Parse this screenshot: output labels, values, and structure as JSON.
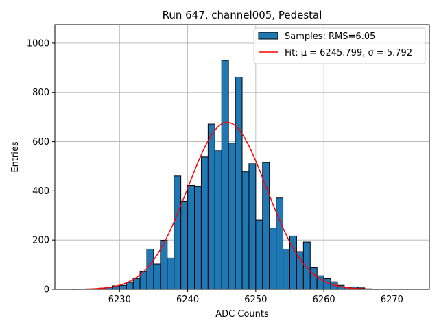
{
  "chart_data": {
    "type": "bar",
    "title": "Run 647, channel005, Pedestal",
    "xlabel": "ADC Counts",
    "ylabel": "Entries",
    "xlim": [
      6220.5,
      6275.5
    ],
    "ylim": [
      0,
      1075
    ],
    "xticks": [
      6230,
      6240,
      6250,
      6260,
      6270
    ],
    "yticks": [
      0,
      200,
      400,
      600,
      800,
      1000
    ],
    "grid": true,
    "legend_position": "top-right",
    "bin_edges_start": 6226,
    "bin_width": 1,
    "bins": [
      {
        "x": 6226,
        "count": 2
      },
      {
        "x": 6227,
        "count": 5
      },
      {
        "x": 6228,
        "count": 8
      },
      {
        "x": 6229,
        "count": 14
      },
      {
        "x": 6230,
        "count": 16
      },
      {
        "x": 6231,
        "count": 28
      },
      {
        "x": 6232,
        "count": 44
      },
      {
        "x": 6233,
        "count": 72
      },
      {
        "x": 6234,
        "count": 163
      },
      {
        "x": 6235,
        "count": 103
      },
      {
        "x": 6236,
        "count": 199
      },
      {
        "x": 6237,
        "count": 127
      },
      {
        "x": 6238,
        "count": 460
      },
      {
        "x": 6239,
        "count": 358
      },
      {
        "x": 6240,
        "count": 422
      },
      {
        "x": 6241,
        "count": 417
      },
      {
        "x": 6242,
        "count": 538
      },
      {
        "x": 6243,
        "count": 671
      },
      {
        "x": 6244,
        "count": 563
      },
      {
        "x": 6245,
        "count": 930
      },
      {
        "x": 6246,
        "count": 594
      },
      {
        "x": 6247,
        "count": 862
      },
      {
        "x": 6248,
        "count": 477
      },
      {
        "x": 6249,
        "count": 510
      },
      {
        "x": 6250,
        "count": 281
      },
      {
        "x": 6251,
        "count": 515
      },
      {
        "x": 6252,
        "count": 249
      },
      {
        "x": 6253,
        "count": 371
      },
      {
        "x": 6254,
        "count": 163
      },
      {
        "x": 6255,
        "count": 216
      },
      {
        "x": 6256,
        "count": 153
      },
      {
        "x": 6257,
        "count": 192
      },
      {
        "x": 6258,
        "count": 88
      },
      {
        "x": 6259,
        "count": 55
      },
      {
        "x": 6260,
        "count": 43
      },
      {
        "x": 6261,
        "count": 30
      },
      {
        "x": 6262,
        "count": 16
      },
      {
        "x": 6263,
        "count": 9
      },
      {
        "x": 6264,
        "count": 10
      },
      {
        "x": 6265,
        "count": 6
      },
      {
        "x": 6266,
        "count": 2
      },
      {
        "x": 6267,
        "count": 1
      },
      {
        "x": 6268,
        "count": 1
      },
      {
        "x": 6269,
        "count": 0
      },
      {
        "x": 6270,
        "count": 0
      },
      {
        "x": 6271,
        "count": 0
      },
      {
        "x": 6272,
        "count": 1
      }
    ],
    "series": [
      {
        "name": "Samples: RMS=6.05",
        "type": "histogram",
        "color": "#1f77b4",
        "edgecolor": "#000000"
      },
      {
        "name": "Fit: μ = 6245.799, σ = 5.792",
        "type": "line",
        "color": "#ff0000",
        "mu": 6245.799,
        "sigma": 5.792,
        "amplitude": 678,
        "x_range": [
          6223,
          6268
        ]
      }
    ]
  }
}
